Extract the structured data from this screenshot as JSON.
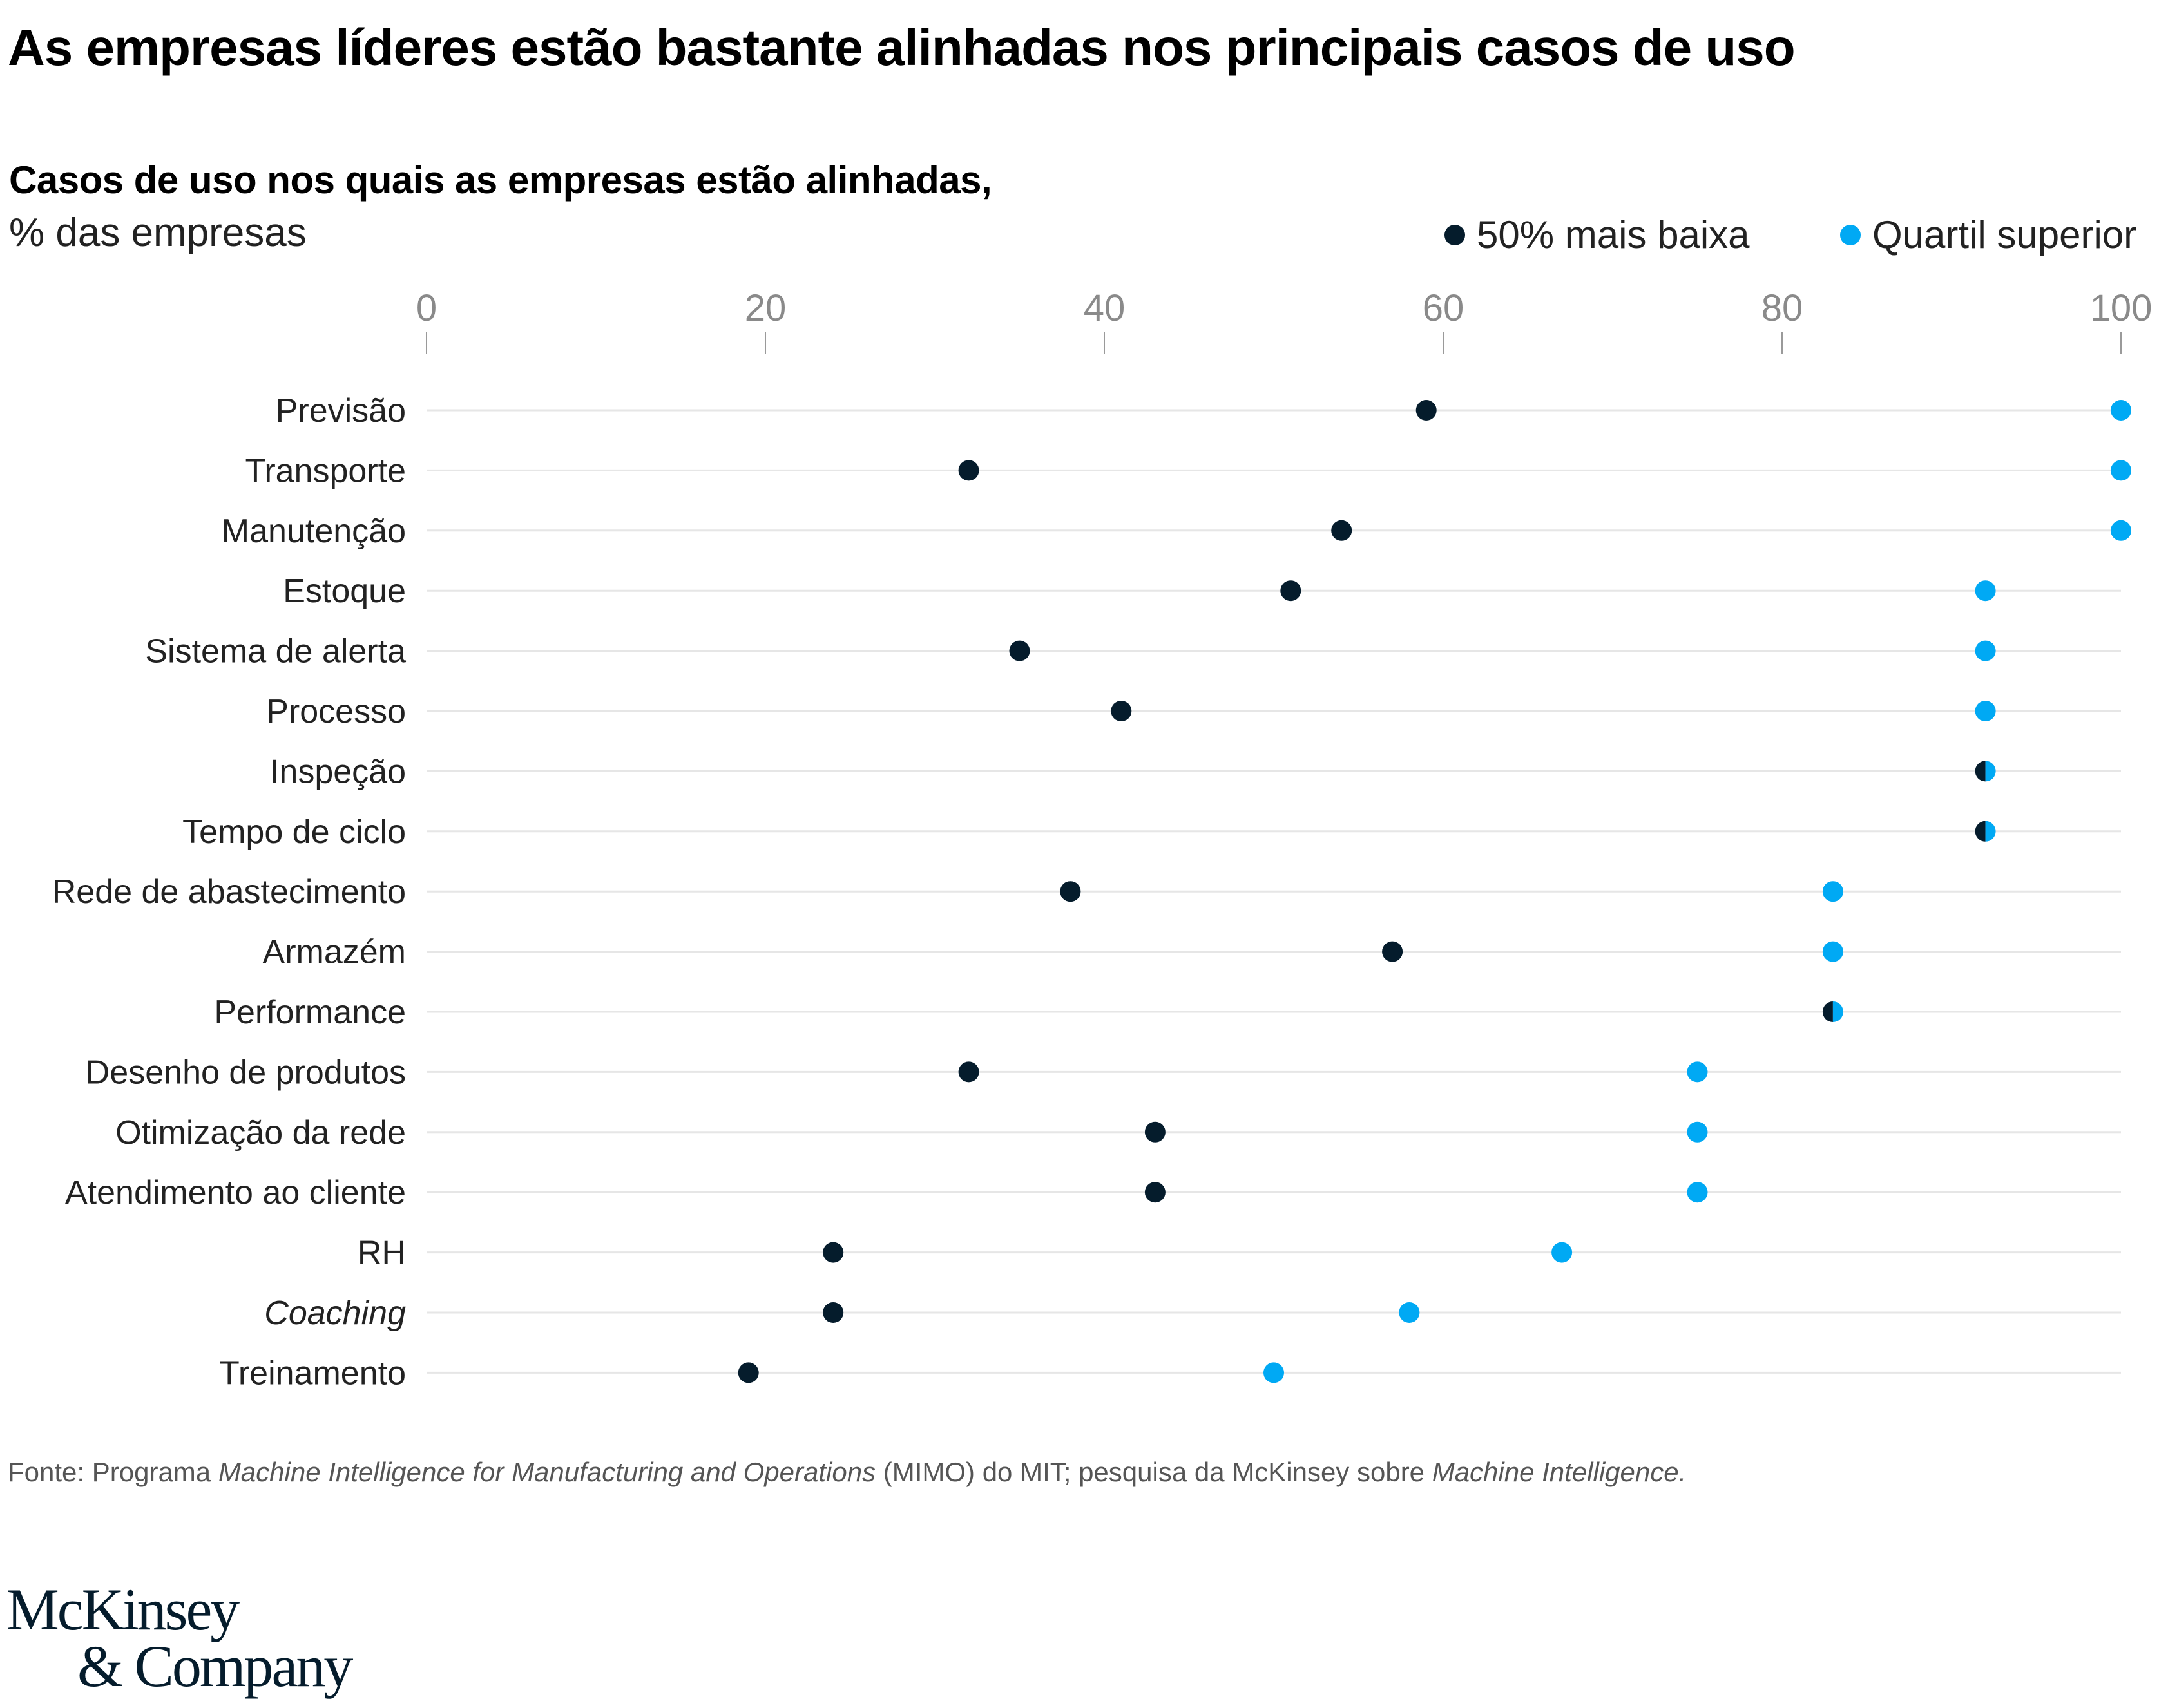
{
  "header": {
    "title": "As empresas líderes estão bastante alinhadas nos principais casos de uso",
    "subtitle": "Casos de uso nos quais as empresas estão alinhadas,",
    "unit": "% das empresas"
  },
  "legend": [
    {
      "label": "50% mais baixa",
      "color": "#051c2c"
    },
    {
      "label": "Quartil superior",
      "color": "#00a9f4"
    }
  ],
  "chart_data": {
    "type": "scatter",
    "subtype": "dumbbell-dot-plot",
    "title": "As empresas líderes estão bastante alinhadas nos principais casos de uso",
    "subtitle": "Casos de uso nos quais as empresas estão alinhadas, % das empresas",
    "xlabel": "% das empresas",
    "ylabel": "",
    "xlim": [
      0,
      100
    ],
    "x_ticks": [
      0,
      20,
      40,
      60,
      80,
      100
    ],
    "grid": true,
    "legend_position": "top-right",
    "categories": [
      "Previsão",
      "Transporte",
      "Manutenção",
      "Estoque",
      "Sistema de alerta",
      "Processo",
      "Inspeção",
      "Tempo de ciclo",
      "Rede de abastecimento",
      "Armazém",
      "Performance",
      "Desenho de produtos",
      "Otimização da rede",
      "Atendimento ao cliente",
      "RH",
      "Coaching",
      "Treinamento"
    ],
    "italic_categories": [
      "Coaching"
    ],
    "series": [
      {
        "name": "50% mais baixa",
        "color": "#051c2c",
        "values": [
          59,
          32,
          54,
          51,
          35,
          41,
          92,
          92,
          38,
          57,
          83,
          32,
          43,
          43,
          24,
          24,
          19
        ]
      },
      {
        "name": "Quartil superior",
        "color": "#00a9f4",
        "values": [
          100,
          100,
          100,
          92,
          92,
          92,
          92,
          92,
          83,
          83,
          83,
          75,
          75,
          75,
          67,
          58,
          50
        ]
      }
    ]
  },
  "footer": {
    "source_parts": [
      {
        "text": "Fonte: Programa ",
        "italic": false
      },
      {
        "text": "Machine Intelligence for Manufacturing and Operations",
        "italic": true
      },
      {
        "text": " (MIMO) do MIT; pesquisa da McKinsey sobre ",
        "italic": false
      },
      {
        "text": "Machine Intelligence.",
        "italic": true
      }
    ],
    "logo_line1": "McKinsey",
    "logo_line2": "& Company"
  }
}
